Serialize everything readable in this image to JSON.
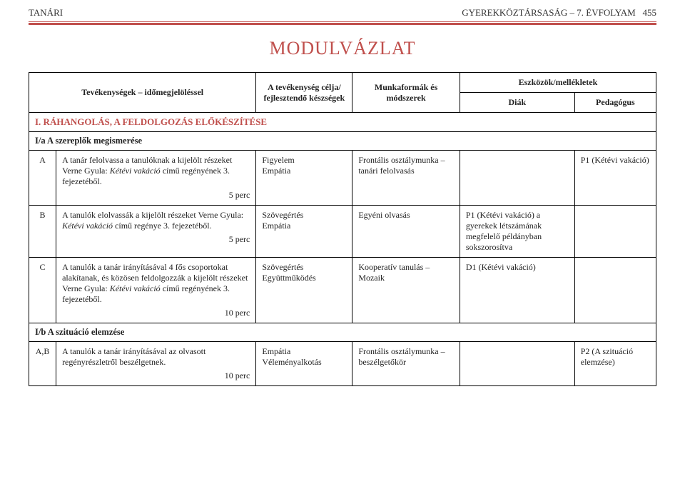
{
  "header": {
    "left": "TANÁRI",
    "right": "GYEREKKÖZTÁRSASÁG – 7. ÉVFOLYAM",
    "page_no": "455"
  },
  "title": "MODULVÁZLAT",
  "columns": {
    "activity": "Tevékenységek – időmegjelöléssel",
    "skills": "A tevékenység célja/ fejlesztendő készségek",
    "methods": "Munkaformák és módszerek",
    "tools_header": "Eszközök/mellékletek",
    "student": "Diák",
    "teacher": "Pedagógus"
  },
  "section1": "I. RÁHANGOLÁS, A FELDOLGOZÁS ELŐKÉSZÍTÉSE",
  "sub1a": "I/a A szereplők megismerése",
  "row_a": {
    "letter": "A",
    "activity_1": "A tanár felolvassa a tanulóknak a kijelölt részeket Verne Gyula: ",
    "activity_italic_1": "Kétévi vakáció",
    "activity_2": " című regényének 3. fejezetéből.",
    "time": "5 perc",
    "skills": "Figyelem\nEmpátia",
    "methods": "Frontális osztálymunka – tanári felolvasás",
    "student": "",
    "teacher": "P1 (Kétévi vakáció)"
  },
  "row_b": {
    "letter": "B",
    "activity_1": "A tanulók elolvassák a kijelölt részeket Verne Gyula: ",
    "activity_italic_1": "Kétévi vakáció",
    "activity_2": " című regénye 3. fejezetéből.",
    "time": "5 perc",
    "skills": "Szövegértés\nEmpátia",
    "methods": "Egyéni olvasás",
    "student": "P1 (Kétévi vakáció) a gyerekek létszámának megfelelő példányban sokszorosítva",
    "teacher": ""
  },
  "row_c": {
    "letter": "C",
    "activity_1": "A tanulók a tanár irányításával 4 fős csoportokat alakítanak, és közösen feldolgozzák a kijelölt részeket Verne Gyula: ",
    "activity_italic_1": "Kétévi vakáció",
    "activity_2": " című regényének 3. fejezetéből.",
    "time": "10 perc",
    "skills": "Szövegértés\nEgyüttműködés",
    "methods": "Kooperatív tanulás – Mozaik",
    "student": "D1 (Kétévi vakáció)",
    "teacher": ""
  },
  "sub1b": "I/b A szituáció elemzése",
  "row_ab": {
    "letter": "A,B",
    "activity": "A tanulók a tanár irányításával az olvasott regényrészletről beszélgetnek.",
    "time": "10 perc",
    "skills": "Empátia\nVéleményalkotás",
    "methods": "Frontális osztálymunka – beszélgetőkör",
    "student": "",
    "teacher": "P2 (A szituáció elemzése)"
  },
  "colors": {
    "accent": "#c0504d",
    "border": "#000000",
    "text": "#222222",
    "background": "#ffffff"
  }
}
